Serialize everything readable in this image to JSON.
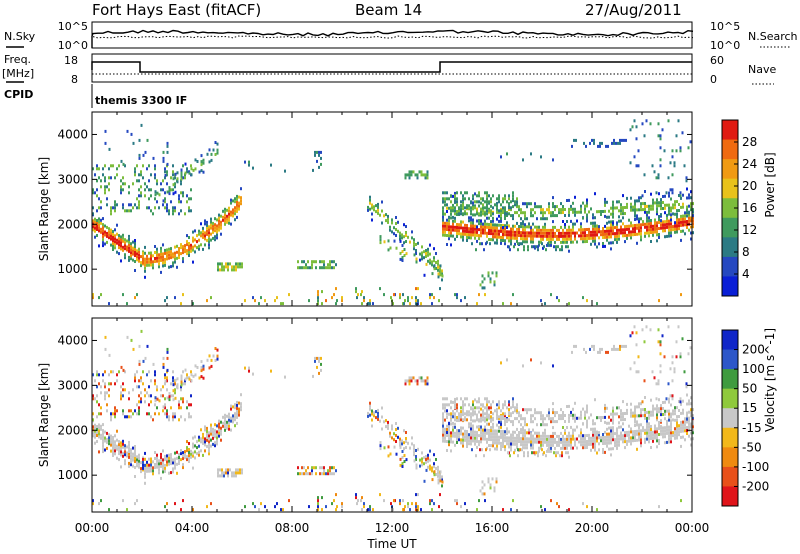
{
  "header": {
    "station": "Fort Hays East (fitACF)",
    "beam": "Beam 14",
    "date": "27/Aug/2011"
  },
  "noise_panel": {
    "left_label": "N.Sky",
    "right_label": "N.Search",
    "left_ticks": [
      "10^5",
      "10^0"
    ],
    "right_ticks": [
      "10^5",
      "10^0"
    ]
  },
  "freq_panel": {
    "left_label_line1": "Freq.",
    "left_label_line2": "[MHz]",
    "right_label": "Nave",
    "left_ticks": [
      "18",
      "8"
    ],
    "right_ticks": [
      "60",
      "0"
    ]
  },
  "cpid_panel": {
    "label": "CPID",
    "text": "themis 3300 IF"
  },
  "colors": {
    "power_scale": [
      "#0a1fd6",
      "#2548c0",
      "#2b7a84",
      "#3f9a5e",
      "#7cbd3c",
      "#e8c21a",
      "#f09a12",
      "#ef6a10",
      "#e01a12"
    ],
    "velocity_scale": [
      "#1026c8",
      "#2d57c9",
      "#3f9b3f",
      "#8fc93c",
      "#c8c8c8",
      "#f2b81a",
      "#ef8a10",
      "#e8501a",
      "#e0141a"
    ]
  },
  "chart_data": [
    {
      "type": "heatmap",
      "name": "power",
      "ylabel": "Slant Range [km]",
      "colorbar_label": "Power [dB]",
      "colorbar_ticks": [
        "4",
        "8",
        "12",
        "16",
        "20",
        "24",
        "28"
      ],
      "colorbar_range": [
        0,
        32
      ],
      "ylim": [
        180,
        4500
      ],
      "y_ticks": [
        "1000",
        "2000",
        "3000",
        "4000"
      ],
      "xlim": [
        0,
        24
      ],
      "x_ticks": [
        "00:00",
        "04:00",
        "08:00",
        "12:00",
        "16:00",
        "20:00",
        "00:00"
      ]
    },
    {
      "type": "heatmap",
      "name": "velocity",
      "ylabel": "Slant Range [km]",
      "colorbar_label": "Velocity [m s^-1]",
      "colorbar_ticks": [
        "200",
        "100",
        "50",
        "15",
        "-15",
        "-50",
        "-100",
        "-200"
      ],
      "colorbar_range": [
        -250,
        250
      ],
      "ylim": [
        180,
        4500
      ],
      "y_ticks": [
        "1000",
        "2000",
        "3000",
        "4000"
      ],
      "xlim": [
        0,
        24
      ],
      "x_ticks": [
        "00:00",
        "04:00",
        "08:00",
        "12:00",
        "16:00",
        "20:00",
        "00:00"
      ],
      "xlabel": "Time UT"
    }
  ]
}
